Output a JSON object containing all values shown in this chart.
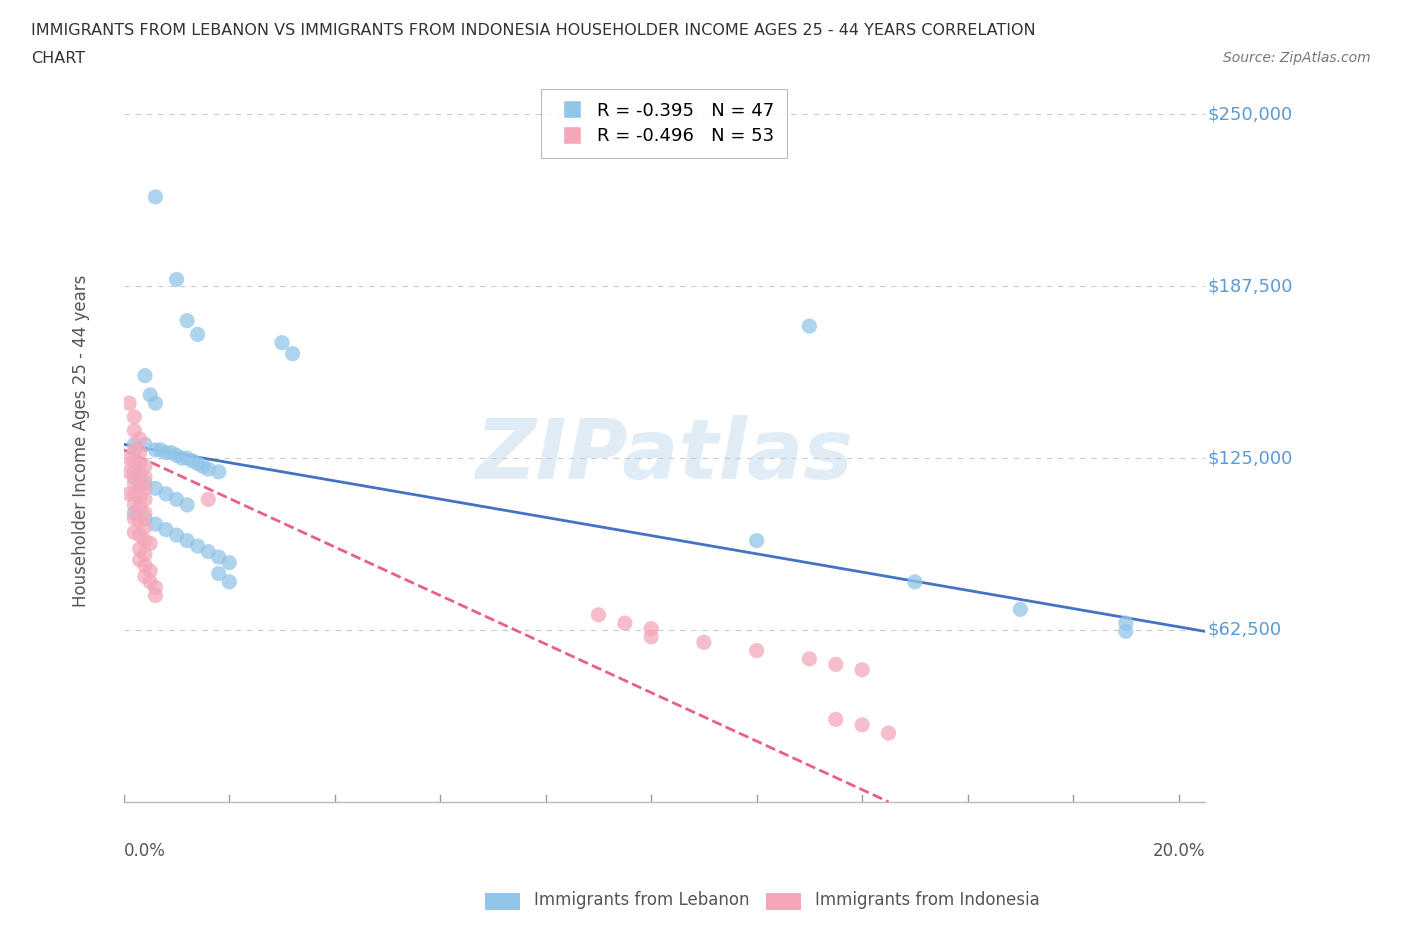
{
  "title_line1": "IMMIGRANTS FROM LEBANON VS IMMIGRANTS FROM INDONESIA HOUSEHOLDER INCOME AGES 25 - 44 YEARS CORRELATION",
  "title_line2": "CHART",
  "source": "Source: ZipAtlas.com",
  "ylabel": "Householder Income Ages 25 - 44 years",
  "y_ticks": [
    62500,
    125000,
    187500,
    250000
  ],
  "y_tick_labels": [
    "$62,500",
    "$125,000",
    "$187,500",
    "$250,000"
  ],
  "ylim": [
    0,
    262500
  ],
  "xlim": [
    0.0,
    0.205
  ],
  "watermark_text": "ZIPatlas",
  "legend_entries": [
    {
      "label": "R = -0.395   N = 47",
      "color": "#92c5e8"
    },
    {
      "label": "R = -0.496   N = 53",
      "color": "#f4a7b9"
    }
  ],
  "lebanon_color": "#92c5e8",
  "indonesia_color": "#f4a7b9",
  "lebanon_line_color": "#4472c4",
  "indonesia_line_color": "#e8608a",
  "lebanon_scatter": [
    [
      0.006,
      220000
    ],
    [
      0.01,
      190000
    ],
    [
      0.012,
      175000
    ],
    [
      0.014,
      170000
    ],
    [
      0.03,
      167000
    ],
    [
      0.032,
      163000
    ],
    [
      0.13,
      173000
    ],
    [
      0.004,
      155000
    ],
    [
      0.005,
      148000
    ],
    [
      0.006,
      145000
    ],
    [
      0.002,
      130000
    ],
    [
      0.004,
      130000
    ],
    [
      0.006,
      128000
    ],
    [
      0.007,
      128000
    ],
    [
      0.008,
      127000
    ],
    [
      0.009,
      127000
    ],
    [
      0.01,
      126000
    ],
    [
      0.011,
      125000
    ],
    [
      0.012,
      125000
    ],
    [
      0.013,
      124000
    ],
    [
      0.014,
      123000
    ],
    [
      0.015,
      122000
    ],
    [
      0.016,
      121000
    ],
    [
      0.018,
      120000
    ],
    [
      0.002,
      118000
    ],
    [
      0.004,
      116000
    ],
    [
      0.006,
      114000
    ],
    [
      0.008,
      112000
    ],
    [
      0.01,
      110000
    ],
    [
      0.012,
      108000
    ],
    [
      0.002,
      105000
    ],
    [
      0.004,
      103000
    ],
    [
      0.006,
      101000
    ],
    [
      0.008,
      99000
    ],
    [
      0.01,
      97000
    ],
    [
      0.012,
      95000
    ],
    [
      0.014,
      93000
    ],
    [
      0.016,
      91000
    ],
    [
      0.018,
      89000
    ],
    [
      0.02,
      87000
    ],
    [
      0.018,
      83000
    ],
    [
      0.02,
      80000
    ],
    [
      0.12,
      95000
    ],
    [
      0.15,
      80000
    ],
    [
      0.17,
      70000
    ],
    [
      0.19,
      65000
    ],
    [
      0.19,
      62000
    ]
  ],
  "indonesia_scatter": [
    [
      0.001,
      145000
    ],
    [
      0.002,
      140000
    ],
    [
      0.002,
      135000
    ],
    [
      0.003,
      132000
    ],
    [
      0.002,
      128000
    ],
    [
      0.003,
      127000
    ],
    [
      0.001,
      125000
    ],
    [
      0.002,
      124000
    ],
    [
      0.003,
      123000
    ],
    [
      0.004,
      122000
    ],
    [
      0.001,
      120000
    ],
    [
      0.002,
      120000
    ],
    [
      0.003,
      119000
    ],
    [
      0.004,
      118000
    ],
    [
      0.002,
      116000
    ],
    [
      0.003,
      115000
    ],
    [
      0.004,
      114000
    ],
    [
      0.001,
      112000
    ],
    [
      0.002,
      112000
    ],
    [
      0.003,
      111000
    ],
    [
      0.004,
      110000
    ],
    [
      0.002,
      108000
    ],
    [
      0.003,
      107000
    ],
    [
      0.004,
      105000
    ],
    [
      0.002,
      103000
    ],
    [
      0.003,
      102000
    ],
    [
      0.004,
      100000
    ],
    [
      0.002,
      98000
    ],
    [
      0.003,
      97000
    ],
    [
      0.004,
      95000
    ],
    [
      0.005,
      94000
    ],
    [
      0.003,
      92000
    ],
    [
      0.004,
      90000
    ],
    [
      0.003,
      88000
    ],
    [
      0.004,
      86000
    ],
    [
      0.005,
      84000
    ],
    [
      0.004,
      82000
    ],
    [
      0.005,
      80000
    ],
    [
      0.006,
      78000
    ],
    [
      0.006,
      75000
    ],
    [
      0.016,
      110000
    ],
    [
      0.09,
      68000
    ],
    [
      0.095,
      65000
    ],
    [
      0.1,
      63000
    ],
    [
      0.1,
      60000
    ],
    [
      0.11,
      58000
    ],
    [
      0.12,
      55000
    ],
    [
      0.13,
      52000
    ],
    [
      0.135,
      50000
    ],
    [
      0.14,
      48000
    ],
    [
      0.135,
      30000
    ],
    [
      0.14,
      28000
    ],
    [
      0.145,
      25000
    ]
  ],
  "lebanon_trend": [
    0.0,
    0.205,
    130000,
    62000
  ],
  "indonesia_trend": [
    0.0,
    0.145,
    128000,
    0
  ]
}
